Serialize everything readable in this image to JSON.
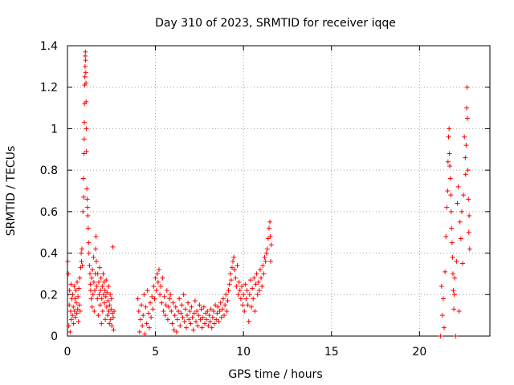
{
  "chart_data": {
    "type": "scatter",
    "title": "Day 310 of 2023, SRMTID for receiver iqqe",
    "xlabel": "GPS time / hours",
    "ylabel": "SRMTID / TECUs",
    "xlim": [
      0,
      24
    ],
    "ylim": [
      0,
      1.4
    ],
    "xticks": [
      0,
      5,
      10,
      15,
      20
    ],
    "xtick_labels": [
      "0",
      "5",
      "10",
      "15",
      "20"
    ],
    "yticks": [
      0,
      0.2,
      0.4,
      0.6,
      0.8,
      1,
      1.2,
      1.4
    ],
    "ytick_labels": [
      "0",
      "0.2",
      "0.4",
      "0.6",
      "0.8",
      "1",
      "1.2",
      "1.4"
    ],
    "grid": true,
    "marker": "+",
    "series": [
      {
        "name": "SRMTID",
        "color": "#ff0000",
        "points": [
          [
            0.02,
            0.36
          ],
          [
            0.05,
            0.3
          ],
          [
            0.08,
            0.05
          ],
          [
            0.1,
            0.15
          ],
          [
            0.12,
            0.22
          ],
          [
            0.15,
            0.02
          ],
          [
            0.18,
            0.12
          ],
          [
            0.2,
            0.25
          ],
          [
            0.22,
            0.08
          ],
          [
            0.25,
            0.18
          ],
          [
            0.28,
            0.1
          ],
          [
            0.3,
            0.2
          ],
          [
            0.33,
            0.14
          ],
          [
            0.35,
            0.06
          ],
          [
            0.38,
            0.24
          ],
          [
            0.4,
            0.12
          ],
          [
            0.43,
            0.18
          ],
          [
            0.45,
            0.09
          ],
          [
            0.48,
            0.22
          ],
          [
            0.5,
            0.16
          ],
          [
            0.53,
            0.11
          ],
          [
            0.55,
            0.26
          ],
          [
            0.58,
            0.13
          ],
          [
            0.6,
            0.19
          ],
          [
            0.62,
            0.07
          ],
          [
            0.65,
            0.23
          ],
          [
            0.68,
            0.15
          ],
          [
            0.7,
            0.28
          ],
          [
            0.72,
            0.12
          ],
          [
            0.75,
            0.33
          ],
          [
            0.78,
            0.4
          ],
          [
            0.8,
            0.36
          ],
          [
            0.82,
            0.42
          ],
          [
            0.85,
            0.34
          ],
          [
            0.88,
            0.6
          ],
          [
            0.9,
            0.76
          ],
          [
            0.92,
            0.67
          ],
          [
            0.94,
            0.88
          ],
          [
            0.95,
            0.95
          ],
          [
            0.96,
            1.03
          ],
          [
            0.97,
            1.12
          ],
          [
            0.98,
            1.21
          ],
          [
            0.99,
            1.25
          ],
          [
            1.0,
            1.3
          ],
          [
            1.01,
            1.35
          ],
          [
            1.02,
            1.37
          ],
          [
            1.03,
            1.33
          ],
          [
            1.04,
            1.27
          ],
          [
            1.05,
            1.22
          ],
          [
            1.06,
            1.13
          ],
          [
            1.07,
            1.0
          ],
          [
            1.08,
            0.89
          ],
          [
            1.1,
            0.71
          ],
          [
            1.12,
            0.66
          ],
          [
            1.14,
            0.62
          ],
          [
            1.16,
            0.58
          ],
          [
            1.18,
            0.52
          ],
          [
            1.2,
            0.45
          ],
          [
            1.22,
            0.4
          ],
          [
            1.25,
            0.34
          ],
          [
            1.28,
            0.3
          ],
          [
            1.3,
            0.25
          ],
          [
            1.32,
            0.22
          ],
          [
            1.35,
            0.18
          ],
          [
            1.38,
            0.28
          ],
          [
            1.4,
            0.14
          ],
          [
            1.42,
            0.32
          ],
          [
            1.45,
            0.2
          ],
          [
            1.48,
            0.38
          ],
          [
            1.5,
            0.26
          ],
          [
            1.52,
            0.12
          ],
          [
            1.55,
            0.22
          ],
          [
            1.58,
            0.3
          ],
          [
            1.6,
            0.42
          ],
          [
            1.62,
            0.48
          ],
          [
            1.64,
            0.36
          ],
          [
            1.66,
            0.24
          ],
          [
            1.7,
            0.18
          ],
          [
            1.72,
            0.3
          ],
          [
            1.75,
            0.1
          ],
          [
            1.78,
            0.26
          ],
          [
            1.8,
            0.2
          ],
          [
            1.83,
            0.33
          ],
          [
            1.85,
            0.15
          ],
          [
            1.88,
            0.22
          ],
          [
            1.9,
            0.28
          ],
          [
            1.93,
            0.06
          ],
          [
            1.95,
            0.18
          ],
          [
            1.98,
            0.24
          ],
          [
            2.0,
            0.12
          ],
          [
            2.03,
            0.3
          ],
          [
            2.05,
            0.2
          ],
          [
            2.08,
            0.26
          ],
          [
            2.1,
            0.16
          ],
          [
            2.13,
            0.22
          ],
          [
            2.15,
            0.08
          ],
          [
            2.18,
            0.19
          ],
          [
            2.2,
            0.27
          ],
          [
            2.23,
            0.14
          ],
          [
            2.25,
            0.21
          ],
          [
            2.28,
            0.1
          ],
          [
            2.3,
            0.17
          ],
          [
            2.33,
            0.24
          ],
          [
            2.35,
            0.12
          ],
          [
            2.38,
            0.06
          ],
          [
            2.4,
            0.15
          ],
          [
            2.43,
            0.2
          ],
          [
            2.45,
            0.08
          ],
          [
            2.48,
            0.13
          ],
          [
            2.5,
            0.18
          ],
          [
            2.52,
            0.05
          ],
          [
            2.55,
            0.11
          ],
          [
            2.58,
            0.43
          ],
          [
            2.6,
            0.09
          ],
          [
            2.62,
            0.03
          ],
          [
            2.65,
            0.12
          ],
          [
            4.0,
            0.18
          ],
          [
            4.05,
            0.12
          ],
          [
            4.1,
            0.02
          ],
          [
            4.15,
            0.08
          ],
          [
            4.2,
            0.15
          ],
          [
            4.25,
            0.05
          ],
          [
            4.3,
            0.1
          ],
          [
            4.35,
            0.2
          ],
          [
            4.4,
            0.01
          ],
          [
            4.45,
            0.14
          ],
          [
            4.5,
            0.06
          ],
          [
            4.55,
            0.22
          ],
          [
            4.6,
            0.11
          ],
          [
            4.65,
            0.04
          ],
          [
            4.7,
            0.16
          ],
          [
            4.75,
            0.09
          ],
          [
            4.8,
            0.19
          ],
          [
            4.85,
            0.13
          ],
          [
            4.9,
            0.24
          ],
          [
            4.95,
            0.18
          ],
          [
            5.0,
            0.28
          ],
          [
            5.05,
            0.22
          ],
          [
            5.1,
            0.3
          ],
          [
            5.15,
            0.26
          ],
          [
            5.2,
            0.32
          ],
          [
            5.25,
            0.2
          ],
          [
            5.3,
            0.24
          ],
          [
            5.35,
            0.16
          ],
          [
            5.4,
            0.28
          ],
          [
            5.45,
            0.12
          ],
          [
            5.5,
            0.19
          ],
          [
            5.55,
            0.1
          ],
          [
            5.6,
            0.15
          ],
          [
            5.65,
            0.22
          ],
          [
            5.7,
            0.08
          ],
          [
            5.75,
            0.14
          ],
          [
            5.8,
            0.18
          ],
          [
            5.85,
            0.2
          ],
          [
            5.9,
            0.12
          ],
          [
            5.95,
            0.06
          ],
          [
            6.0,
            0.16
          ],
          [
            6.05,
            0.03
          ],
          [
            6.1,
            0.1
          ],
          [
            6.15,
            0.14
          ],
          [
            6.2,
            0.02
          ],
          [
            6.25,
            0.08
          ],
          [
            6.3,
            0.12
          ],
          [
            6.35,
            0.18
          ],
          [
            6.4,
            0.05
          ],
          [
            6.45,
            0.11
          ],
          [
            6.5,
            0.15
          ],
          [
            6.55,
            0.09
          ],
          [
            6.6,
            0.2
          ],
          [
            6.65,
            0.07
          ],
          [
            6.7,
            0.13
          ],
          [
            6.75,
            0.04
          ],
          [
            6.8,
            0.1
          ],
          [
            6.85,
            0.16
          ],
          [
            6.9,
            0.08
          ],
          [
            6.95,
            0.12
          ],
          [
            7.0,
            0.06
          ],
          [
            7.05,
            0.14
          ],
          [
            7.1,
            0.09
          ],
          [
            7.15,
            0.03
          ],
          [
            7.2,
            0.11
          ],
          [
            7.25,
            0.17
          ],
          [
            7.3,
            0.07
          ],
          [
            7.35,
            0.12
          ],
          [
            7.4,
            0.05
          ],
          [
            7.45,
            0.1
          ],
          [
            7.5,
            0.15
          ],
          [
            7.55,
            0.08
          ],
          [
            7.6,
            0.13
          ],
          [
            7.65,
            0.04
          ],
          [
            7.7,
            0.09
          ],
          [
            7.75,
            0.14
          ],
          [
            7.8,
            0.06
          ],
          [
            7.85,
            0.11
          ],
          [
            7.9,
            0.08
          ],
          [
            7.95,
            0.12
          ],
          [
            8.0,
            0.05
          ],
          [
            8.05,
            0.1
          ],
          [
            8.1,
            0.07
          ],
          [
            8.15,
            0.13
          ],
          [
            8.2,
            0.04
          ],
          [
            8.25,
            0.09
          ],
          [
            8.3,
            0.12
          ],
          [
            8.35,
            0.06
          ],
          [
            8.4,
            0.15
          ],
          [
            8.45,
            0.08
          ],
          [
            8.5,
            0.11
          ],
          [
            8.55,
            0.14
          ],
          [
            8.6,
            0.07
          ],
          [
            8.65,
            0.12
          ],
          [
            8.7,
            0.16
          ],
          [
            8.75,
            0.09
          ],
          [
            8.8,
            0.13
          ],
          [
            8.85,
            0.18
          ],
          [
            8.9,
            0.1
          ],
          [
            8.95,
            0.15
          ],
          [
            9.0,
            0.2
          ],
          [
            9.05,
            0.12
          ],
          [
            9.1,
            0.17
          ],
          [
            9.15,
            0.22
          ],
          [
            9.2,
            0.25
          ],
          [
            9.25,
            0.3
          ],
          [
            9.3,
            0.27
          ],
          [
            9.35,
            0.33
          ],
          [
            9.4,
            0.36
          ],
          [
            9.45,
            0.38
          ],
          [
            9.5,
            0.32
          ],
          [
            9.55,
            0.28
          ],
          [
            9.6,
            0.24
          ],
          [
            9.65,
            0.34
          ],
          [
            9.7,
            0.2
          ],
          [
            9.75,
            0.26
          ],
          [
            9.8,
            0.22
          ],
          [
            9.85,
            0.18
          ],
          [
            9.9,
            0.24
          ],
          [
            9.95,
            0.15
          ],
          [
            10.0,
            0.2
          ],
          [
            10.05,
            0.12
          ],
          [
            10.1,
            0.25
          ],
          [
            10.15,
            0.18
          ],
          [
            10.2,
            0.22
          ],
          [
            10.25,
            0.15
          ],
          [
            10.3,
            0.07
          ],
          [
            10.35,
            0.2
          ],
          [
            10.4,
            0.27
          ],
          [
            10.45,
            0.14
          ],
          [
            10.5,
            0.23
          ],
          [
            10.55,
            0.18
          ],
          [
            10.6,
            0.28
          ],
          [
            10.65,
            0.12
          ],
          [
            10.7,
            0.25
          ],
          [
            10.75,
            0.3
          ],
          [
            10.8,
            0.2
          ],
          [
            10.85,
            0.26
          ],
          [
            10.9,
            0.22
          ],
          [
            10.95,
            0.32
          ],
          [
            11.0,
            0.28
          ],
          [
            11.05,
            0.24
          ],
          [
            11.1,
            0.34
          ],
          [
            11.15,
            0.3
          ],
          [
            11.2,
            0.38
          ],
          [
            11.25,
            0.36
          ],
          [
            11.3,
            0.4
          ],
          [
            11.35,
            0.42
          ],
          [
            11.4,
            0.47
          ],
          [
            11.45,
            0.52
          ],
          [
            11.5,
            0.55
          ],
          [
            11.52,
            0.48
          ],
          [
            11.55,
            0.36
          ],
          [
            11.58,
            0.44
          ],
          [
            21.2,
            0.0
          ],
          [
            21.25,
            0.24
          ],
          [
            21.3,
            0.1
          ],
          [
            21.35,
            0.18
          ],
          [
            21.4,
            0.04
          ],
          [
            21.45,
            0.31
          ],
          [
            21.5,
            0.48
          ],
          [
            21.55,
            0.62
          ],
          [
            21.6,
            0.7
          ],
          [
            21.62,
            0.84
          ],
          [
            21.65,
            0.96
          ],
          [
            21.68,
            1.0
          ],
          [
            21.7,
            0.88
          ],
          [
            21.72,
            0.82
          ],
          [
            21.75,
            0.76
          ],
          [
            21.78,
            0.68
          ],
          [
            21.8,
            0.6
          ],
          [
            21.82,
            0.52
          ],
          [
            21.85,
            0.45
          ],
          [
            21.88,
            0.38
          ],
          [
            21.9,
            0.3
          ],
          [
            21.92,
            0.22
          ],
          [
            21.95,
            0.13
          ],
          [
            21.98,
            0.2
          ],
          [
            22.0,
            0.28
          ],
          [
            22.05,
            0.0
          ],
          [
            22.1,
            0.36
          ],
          [
            22.15,
            0.64
          ],
          [
            22.2,
            0.72
          ],
          [
            22.25,
            0.12
          ],
          [
            22.3,
            0.55
          ],
          [
            22.35,
            0.47
          ],
          [
            22.4,
            0.6
          ],
          [
            22.45,
            0.35
          ],
          [
            22.5,
            0.68
          ],
          [
            22.55,
            0.96
          ],
          [
            22.6,
            0.86
          ],
          [
            22.62,
            0.78
          ],
          [
            22.65,
            0.92
          ],
          [
            22.68,
            1.1
          ],
          [
            22.7,
            1.2
          ],
          [
            22.72,
            1.05
          ],
          [
            22.75,
            0.8
          ],
          [
            22.78,
            0.66
          ],
          [
            22.8,
            0.5
          ],
          [
            22.82,
            0.58
          ],
          [
            22.85,
            0.42
          ]
        ]
      }
    ]
  }
}
